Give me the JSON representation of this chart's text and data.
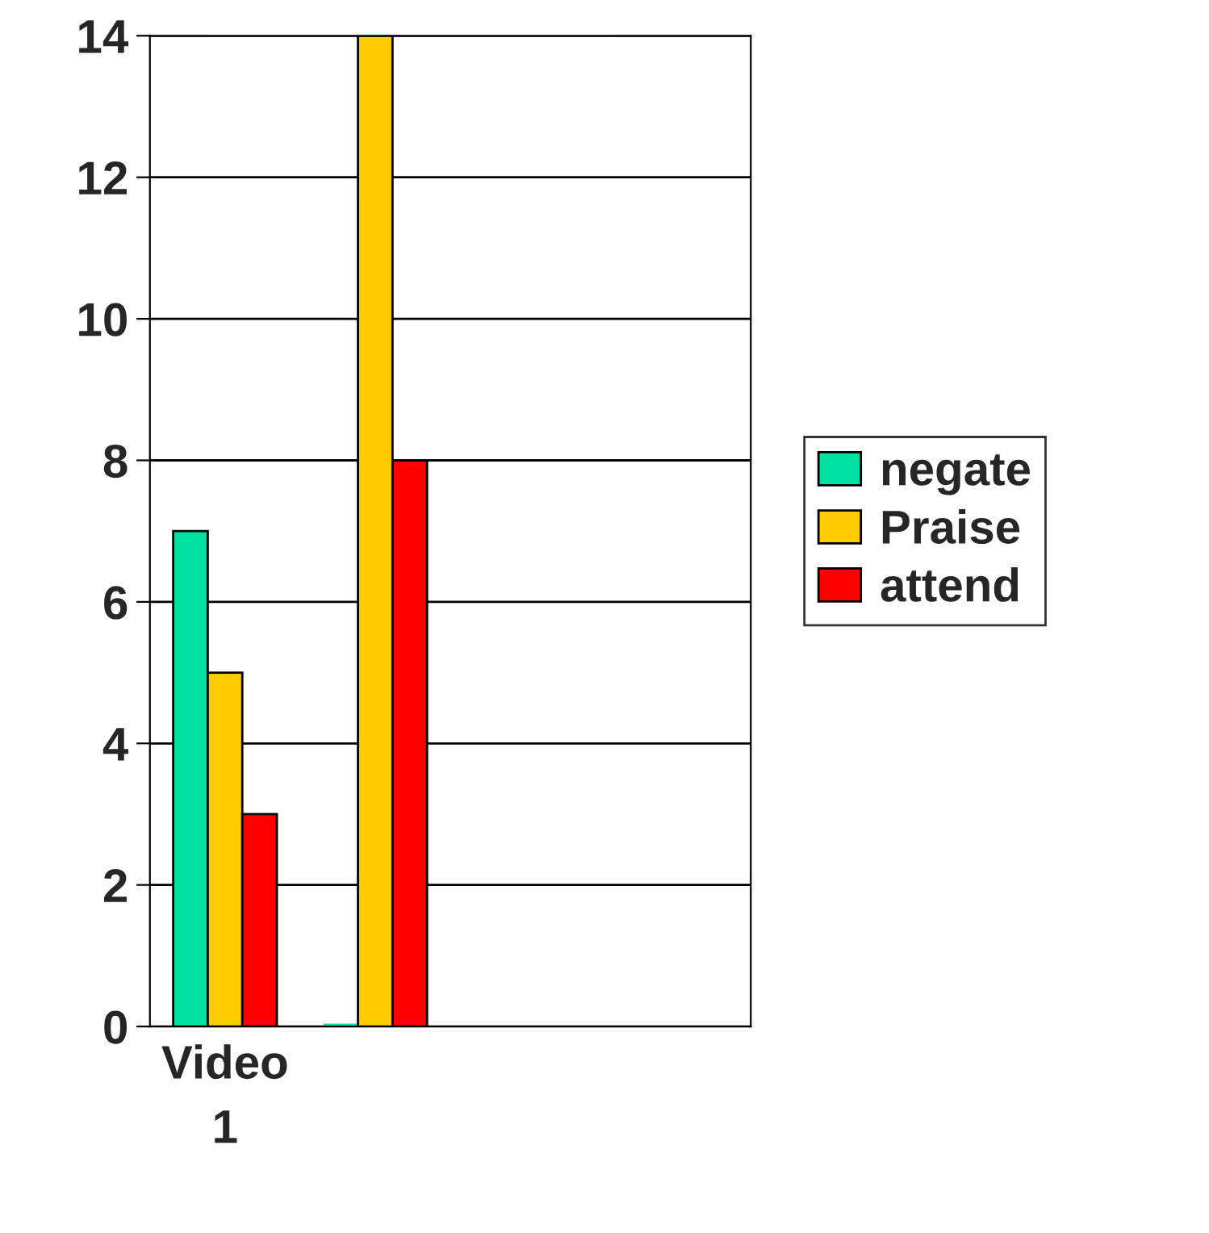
{
  "chart_data": {
    "type": "bar",
    "categories": [
      "Video 1",
      null,
      null,
      null
    ],
    "series": [
      {
        "name": "negate",
        "color": "#00e0a0",
        "values": [
          7,
          0,
          null,
          null
        ]
      },
      {
        "name": "Praise",
        "color": "#ffcc00",
        "values": [
          5,
          14,
          null,
          null
        ]
      },
      {
        "name": "attend",
        "color": "#ff0000",
        "values": [
          3,
          8,
          null,
          null
        ]
      }
    ],
    "ylim": [
      0,
      14
    ],
    "yticks": [
      0,
      2,
      4,
      6,
      8,
      10,
      12,
      14
    ],
    "grid": "y",
    "legend": "right"
  }
}
